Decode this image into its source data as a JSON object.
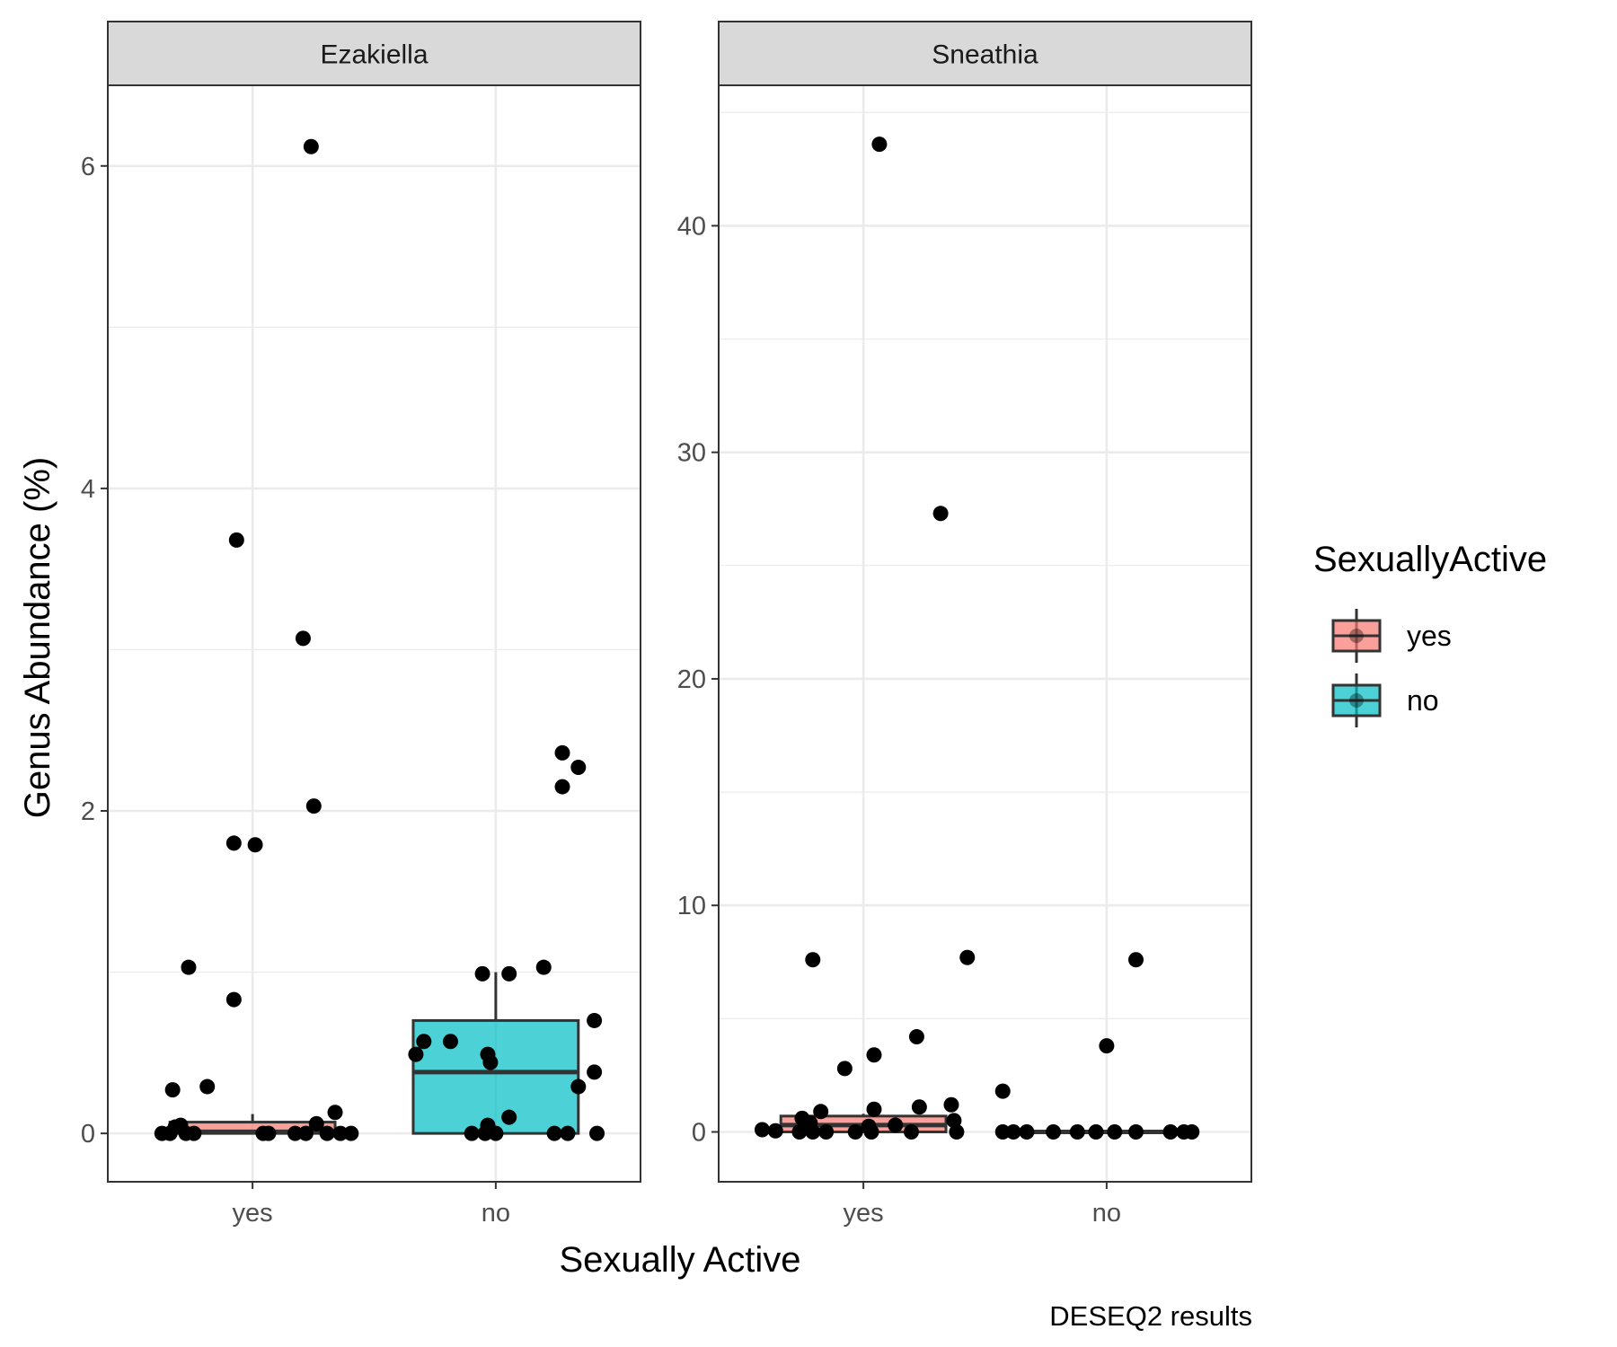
{
  "chart_data": {
    "type": "boxplot",
    "xlabel": "Sexually Active",
    "ylabel": "Genus Abundance (%)",
    "caption": "DESEQ2 results",
    "categories": [
      "yes",
      "no"
    ],
    "legend": {
      "title": "SexuallyActive",
      "position": "right",
      "entries": [
        {
          "label": "yes",
          "color": "#F8766D"
        },
        {
          "label": "no",
          "color": "#00BFC4"
        }
      ]
    },
    "grid": true,
    "panels": [
      {
        "title": "Ezakiella",
        "ylim": [
          -0.3,
          6.5
        ],
        "yticks": [
          0,
          2,
          4,
          6
        ],
        "ytick_labels": [
          "0",
          "2",
          "4",
          "6"
        ],
        "boxes": [
          {
            "group": "yes",
            "q1": 0.0,
            "median": 0.01,
            "q3": 0.07,
            "whisker_low": 0.0,
            "whisker_high": 0.12
          },
          {
            "group": "no",
            "q1": 0.0,
            "median": 0.38,
            "q3": 0.7,
            "whisker_low": 0.0,
            "whisker_high": 1.0
          }
        ],
        "points": [
          {
            "group": "yes",
            "x_offset": 0.22,
            "y": 6.12
          },
          {
            "group": "yes",
            "x_offset": -0.06,
            "y": 3.68
          },
          {
            "group": "yes",
            "x_offset": 0.19,
            "y": 3.07
          },
          {
            "group": "yes",
            "x_offset": 0.23,
            "y": 2.03
          },
          {
            "group": "yes",
            "x_offset": -0.07,
            "y": 1.8
          },
          {
            "group": "yes",
            "x_offset": 0.01,
            "y": 1.79
          },
          {
            "group": "yes",
            "x_offset": -0.24,
            "y": 1.03
          },
          {
            "group": "yes",
            "x_offset": -0.07,
            "y": 0.83
          },
          {
            "group": "yes",
            "x_offset": -0.17,
            "y": 0.29
          },
          {
            "group": "yes",
            "x_offset": -0.3,
            "y": 0.27
          },
          {
            "group": "yes",
            "x_offset": 0.31,
            "y": 0.13
          },
          {
            "group": "yes",
            "x_offset": 0.24,
            "y": 0.06
          },
          {
            "group": "yes",
            "x_offset": -0.27,
            "y": 0.05
          },
          {
            "group": "yes",
            "x_offset": -0.29,
            "y": 0.04
          },
          {
            "group": "yes",
            "x_offset": -0.34,
            "y": 0.0
          },
          {
            "group": "yes",
            "x_offset": -0.31,
            "y": 0.0
          },
          {
            "group": "yes",
            "x_offset": -0.25,
            "y": 0.0
          },
          {
            "group": "yes",
            "x_offset": -0.22,
            "y": 0.0
          },
          {
            "group": "yes",
            "x_offset": 0.04,
            "y": 0.0
          },
          {
            "group": "yes",
            "x_offset": 0.06,
            "y": 0.0
          },
          {
            "group": "yes",
            "x_offset": 0.16,
            "y": 0.0
          },
          {
            "group": "yes",
            "x_offset": 0.2,
            "y": 0.0
          },
          {
            "group": "yes",
            "x_offset": 0.28,
            "y": 0.0
          },
          {
            "group": "yes",
            "x_offset": 0.33,
            "y": 0.0
          },
          {
            "group": "yes",
            "x_offset": 0.37,
            "y": 0.0
          },
          {
            "group": "no",
            "x_offset": 0.25,
            "y": 2.36
          },
          {
            "group": "no",
            "x_offset": 0.31,
            "y": 2.27
          },
          {
            "group": "no",
            "x_offset": 0.25,
            "y": 2.15
          },
          {
            "group": "no",
            "x_offset": 0.18,
            "y": 1.03
          },
          {
            "group": "no",
            "x_offset": -0.05,
            "y": 0.99
          },
          {
            "group": "no",
            "x_offset": 0.05,
            "y": 0.99
          },
          {
            "group": "no",
            "x_offset": 0.37,
            "y": 0.7
          },
          {
            "group": "no",
            "x_offset": -0.27,
            "y": 0.57
          },
          {
            "group": "no",
            "x_offset": -0.17,
            "y": 0.57
          },
          {
            "group": "no",
            "x_offset": -0.3,
            "y": 0.49
          },
          {
            "group": "no",
            "x_offset": -0.03,
            "y": 0.49
          },
          {
            "group": "no",
            "x_offset": -0.02,
            "y": 0.44
          },
          {
            "group": "no",
            "x_offset": 0.37,
            "y": 0.38
          },
          {
            "group": "no",
            "x_offset": 0.31,
            "y": 0.29
          },
          {
            "group": "no",
            "x_offset": 0.05,
            "y": 0.1
          },
          {
            "group": "no",
            "x_offset": -0.03,
            "y": 0.05
          },
          {
            "group": "no",
            "x_offset": -0.09,
            "y": 0.0
          },
          {
            "group": "no",
            "x_offset": -0.04,
            "y": 0.0
          },
          {
            "group": "no",
            "x_offset": 0.0,
            "y": 0.0
          },
          {
            "group": "no",
            "x_offset": 0.22,
            "y": 0.0
          },
          {
            "group": "no",
            "x_offset": 0.27,
            "y": 0.0
          },
          {
            "group": "no",
            "x_offset": 0.38,
            "y": 0.0
          }
        ]
      },
      {
        "title": "Sneathia",
        "ylim": [
          -2.2,
          46.2
        ],
        "yticks": [
          0,
          10,
          20,
          30,
          40
        ],
        "ytick_labels": [
          "0",
          "10",
          "20",
          "30",
          "40"
        ],
        "boxes": [
          {
            "group": "yes",
            "q1": 0.0,
            "median": 0.3,
            "q3": 0.7,
            "whisker_low": 0.0,
            "whisker_high": 0.8
          },
          {
            "group": "no",
            "q1": 0.0,
            "median": 0.0,
            "q3": 0.0,
            "whisker_low": 0.0,
            "whisker_high": 0.0
          }
        ],
        "points": [
          {
            "group": "yes",
            "x_offset": 0.06,
            "y": 43.6
          },
          {
            "group": "yes",
            "x_offset": 0.29,
            "y": 27.3
          },
          {
            "group": "yes",
            "x_offset": 0.39,
            "y": 7.7
          },
          {
            "group": "yes",
            "x_offset": -0.19,
            "y": 7.6
          },
          {
            "group": "yes",
            "x_offset": 0.2,
            "y": 4.2
          },
          {
            "group": "yes",
            "x_offset": 0.04,
            "y": 3.4
          },
          {
            "group": "yes",
            "x_offset": -0.07,
            "y": 2.8
          },
          {
            "group": "yes",
            "x_offset": 0.33,
            "y": 1.2
          },
          {
            "group": "yes",
            "x_offset": 0.21,
            "y": 1.1
          },
          {
            "group": "yes",
            "x_offset": 0.04,
            "y": 1.0
          },
          {
            "group": "yes",
            "x_offset": -0.16,
            "y": 0.9
          },
          {
            "group": "yes",
            "x_offset": -0.23,
            "y": 0.6
          },
          {
            "group": "yes",
            "x_offset": 0.34,
            "y": 0.5
          },
          {
            "group": "yes",
            "x_offset": -0.2,
            "y": 0.4
          },
          {
            "group": "yes",
            "x_offset": 0.12,
            "y": 0.3
          },
          {
            "group": "yes",
            "x_offset": 0.02,
            "y": 0.25
          },
          {
            "group": "yes",
            "x_offset": -0.38,
            "y": 0.1
          },
          {
            "group": "yes",
            "x_offset": -0.33,
            "y": 0.05
          },
          {
            "group": "yes",
            "x_offset": -0.24,
            "y": 0.0
          },
          {
            "group": "yes",
            "x_offset": -0.19,
            "y": 0.0
          },
          {
            "group": "yes",
            "x_offset": -0.14,
            "y": 0.0
          },
          {
            "group": "yes",
            "x_offset": -0.03,
            "y": 0.0
          },
          {
            "group": "yes",
            "x_offset": 0.03,
            "y": 0.0
          },
          {
            "group": "yes",
            "x_offset": 0.18,
            "y": 0.0
          },
          {
            "group": "yes",
            "x_offset": 0.35,
            "y": 0.0
          },
          {
            "group": "no",
            "x_offset": 0.11,
            "y": 7.6
          },
          {
            "group": "no",
            "x_offset": 0.0,
            "y": 3.8
          },
          {
            "group": "no",
            "x_offset": -0.39,
            "y": 1.8
          },
          {
            "group": "no",
            "x_offset": -0.39,
            "y": 0.0
          },
          {
            "group": "no",
            "x_offset": -0.35,
            "y": 0.0
          },
          {
            "group": "no",
            "x_offset": -0.3,
            "y": 0.0
          },
          {
            "group": "no",
            "x_offset": -0.2,
            "y": 0.0
          },
          {
            "group": "no",
            "x_offset": -0.11,
            "y": 0.0
          },
          {
            "group": "no",
            "x_offset": -0.04,
            "y": 0.0
          },
          {
            "group": "no",
            "x_offset": 0.03,
            "y": 0.0
          },
          {
            "group": "no",
            "x_offset": 0.11,
            "y": 0.0
          },
          {
            "group": "no",
            "x_offset": 0.24,
            "y": 0.0
          },
          {
            "group": "no",
            "x_offset": 0.29,
            "y": 0.0
          },
          {
            "group": "no",
            "x_offset": 0.32,
            "y": 0.0
          }
        ]
      }
    ]
  }
}
